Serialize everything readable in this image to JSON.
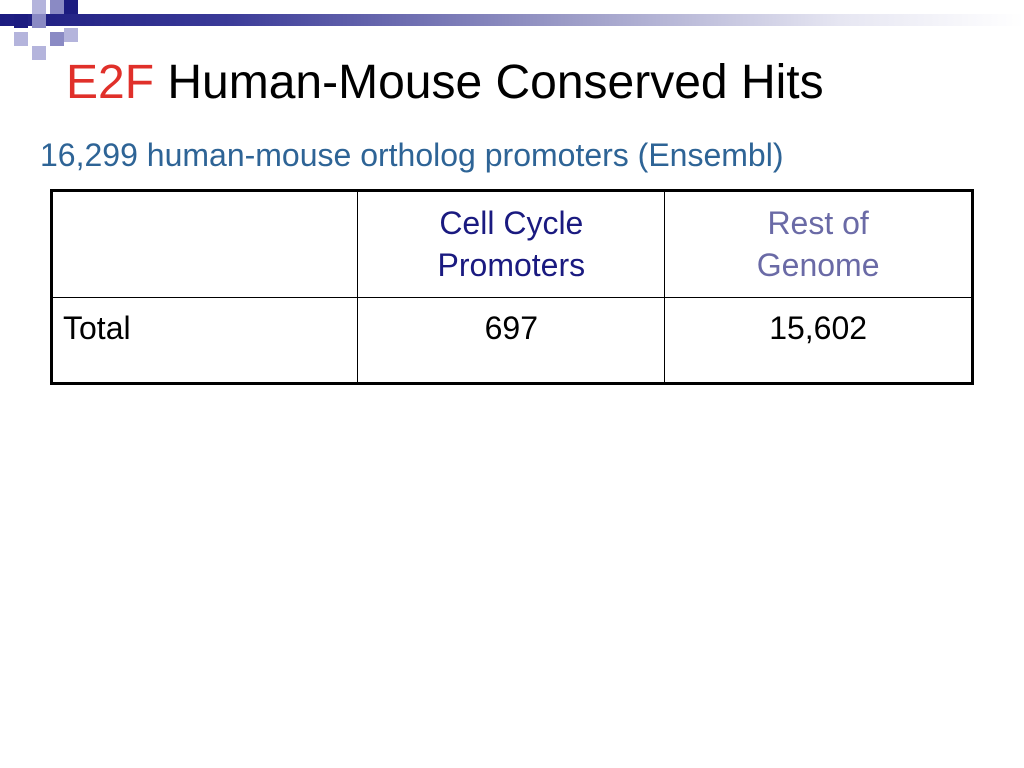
{
  "slide": {
    "title_highlight": "E2F",
    "title_rest": "Human-Mouse Conserved Hits",
    "subtitle": "16,299 human-mouse ortholog promoters (Ensembl)"
  },
  "table": {
    "headers": [
      {
        "line1": "",
        "line2": ""
      },
      {
        "line1": "Cell Cycle",
        "line2": "Promoters"
      },
      {
        "line1": "Rest of",
        "line2": "Genome"
      }
    ],
    "rows": [
      {
        "label": "Total",
        "cell_cycle": "697",
        "rest_of_genome": "15,602"
      }
    ]
  },
  "colors": {
    "title_highlight": "#e0302a",
    "subtitle": "#2e6496",
    "header_cell_cycle": "#1a1a80",
    "header_rest_of_genome": "#6a6aa6",
    "decor_dark": "#1c1c80"
  }
}
